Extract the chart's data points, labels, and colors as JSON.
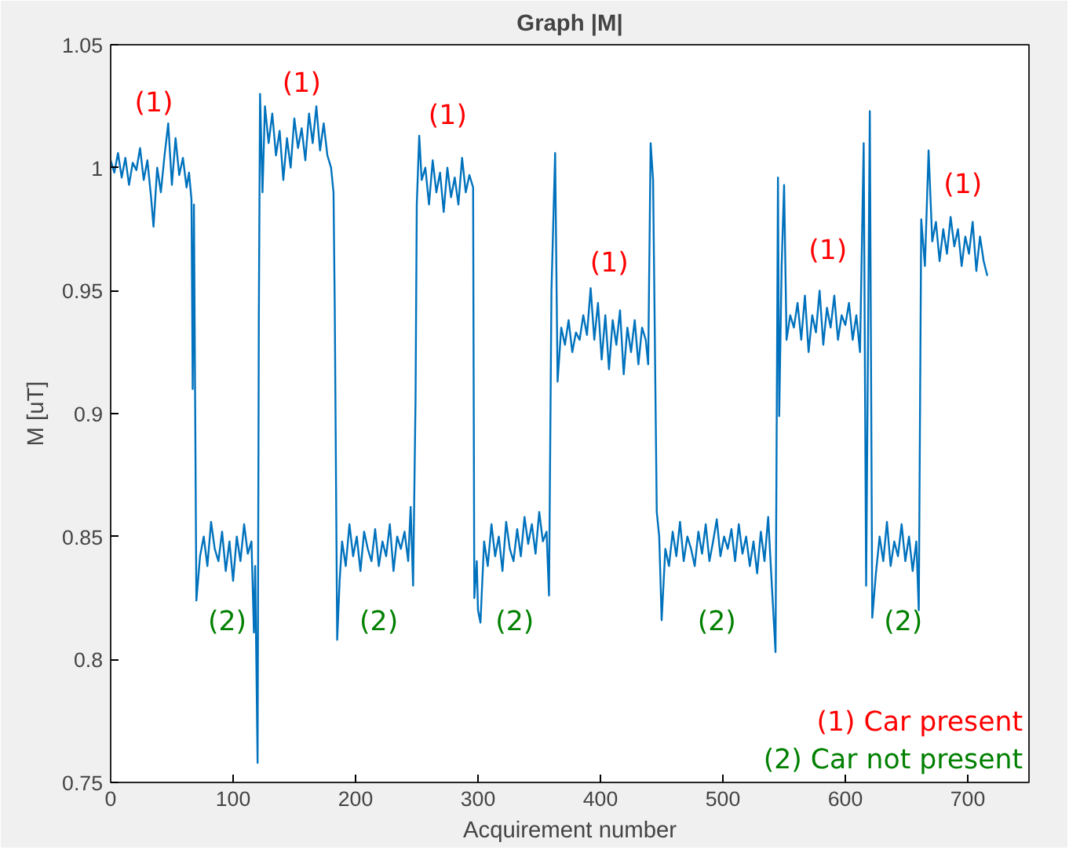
{
  "chart_data": {
    "type": "line",
    "title": "Graph |M|",
    "xlabel": "Acquirement number",
    "ylabel": "M [uT]",
    "xlim": [
      0,
      750
    ],
    "ylim": [
      0.75,
      1.05
    ],
    "xticks": [
      0,
      100,
      200,
      300,
      400,
      500,
      600,
      700
    ],
    "yticks": [
      0.75,
      0.8,
      0.85,
      0.9,
      0.95,
      1,
      1.05
    ],
    "grid": false,
    "series": [
      {
        "color": "#0072bd",
        "x": [
          0,
          3,
          6,
          9,
          12,
          15,
          18,
          21,
          24,
          27,
          30,
          33,
          35,
          38,
          41,
          44,
          47,
          50,
          53,
          56,
          59,
          62,
          64,
          66,
          67,
          68,
          70,
          73,
          76,
          79,
          82,
          85,
          88,
          91,
          94,
          97,
          100,
          103,
          106,
          109,
          112,
          115,
          117,
          118,
          120,
          121,
          122,
          124,
          126,
          129,
          132,
          135,
          138,
          141,
          144,
          147,
          150,
          153,
          156,
          159,
          162,
          165,
          168,
          171,
          174,
          177,
          180,
          182,
          183,
          185,
          187,
          189,
          192,
          195,
          198,
          201,
          204,
          207,
          210,
          213,
          216,
          219,
          222,
          225,
          228,
          231,
          234,
          237,
          240,
          243,
          245,
          247,
          249,
          250,
          252,
          254,
          257,
          260,
          263,
          266,
          269,
          272,
          275,
          278,
          281,
          284,
          287,
          290,
          293,
          296,
          297,
          299,
          300,
          302,
          305,
          308,
          311,
          314,
          317,
          320,
          323,
          326,
          329,
          332,
          335,
          338,
          341,
          344,
          347,
          350,
          353,
          356,
          358,
          360,
          363,
          365,
          368,
          371,
          374,
          377,
          380,
          383,
          386,
          389,
          392,
          395,
          398,
          401,
          404,
          407,
          410,
          413,
          416,
          419,
          422,
          425,
          428,
          431,
          434,
          437,
          439,
          441,
          443,
          446,
          448,
          450,
          453,
          456,
          459,
          462,
          465,
          468,
          471,
          474,
          477,
          480,
          483,
          486,
          489,
          492,
          495,
          498,
          501,
          504,
          507,
          510,
          513,
          516,
          519,
          522,
          525,
          528,
          531,
          534,
          537,
          540,
          543,
          545,
          546,
          548,
          550,
          552,
          555,
          558,
          561,
          564,
          567,
          570,
          573,
          576,
          579,
          582,
          585,
          588,
          591,
          594,
          597,
          600,
          603,
          606,
          609,
          612,
          615,
          617,
          620,
          622,
          625,
          628,
          631,
          634,
          637,
          640,
          643,
          646,
          649,
          652,
          655,
          658,
          660,
          662,
          665,
          668,
          671,
          674,
          677,
          680,
          683,
          686,
          689,
          692,
          695,
          698,
          701,
          704,
          707,
          710,
          713,
          716
        ],
        "values": [
          1.003,
          0.998,
          1.006,
          0.996,
          1.004,
          0.993,
          1.002,
          0.999,
          1.008,
          0.995,
          1.003,
          0.988,
          0.976,
          1.0,
          0.99,
          1.005,
          1.018,
          0.993,
          1.012,
          0.997,
          1.004,
          0.992,
          0.998,
          0.987,
          0.91,
          0.985,
          0.824,
          0.842,
          0.85,
          0.838,
          0.856,
          0.845,
          0.84,
          0.852,
          0.836,
          0.848,
          0.832,
          0.85,
          0.84,
          0.855,
          0.843,
          0.848,
          0.811,
          0.838,
          0.758,
          0.938,
          1.03,
          0.99,
          1.025,
          1.01,
          1.022,
          1.005,
          1.015,
          0.995,
          1.012,
          1.0,
          1.02,
          1.008,
          1.016,
          1.003,
          1.022,
          1.01,
          1.025,
          1.007,
          1.018,
          1.005,
          1.0,
          0.99,
          0.944,
          0.808,
          0.832,
          0.848,
          0.838,
          0.855,
          0.842,
          0.85,
          0.836,
          0.852,
          0.845,
          0.84,
          0.853,
          0.838,
          0.848,
          0.842,
          0.855,
          0.836,
          0.85,
          0.845,
          0.852,
          0.84,
          0.862,
          0.83,
          0.906,
          0.985,
          1.013,
          0.995,
          1.0,
          0.985,
          1.003,
          0.99,
          0.998,
          0.982,
          1.0,
          0.988,
          0.996,
          0.985,
          1.004,
          0.99,
          0.997,
          0.992,
          0.825,
          0.84,
          0.82,
          0.815,
          0.848,
          0.838,
          0.855,
          0.842,
          0.85,
          0.836,
          0.856,
          0.845,
          0.84,
          0.853,
          0.842,
          0.858,
          0.847,
          0.855,
          0.843,
          0.86,
          0.848,
          0.852,
          0.826,
          0.95,
          1.006,
          0.913,
          0.935,
          0.928,
          0.938,
          0.925,
          0.933,
          0.93,
          0.94,
          0.932,
          0.951,
          0.93,
          0.945,
          0.922,
          0.94,
          0.918,
          0.938,
          0.928,
          0.942,
          0.916,
          0.935,
          0.925,
          0.938,
          0.92,
          0.935,
          0.93,
          0.92,
          1.01,
          0.995,
          0.86,
          0.85,
          0.816,
          0.845,
          0.838,
          0.852,
          0.842,
          0.856,
          0.84,
          0.85,
          0.845,
          0.838,
          0.852,
          0.843,
          0.855,
          0.84,
          0.848,
          0.857,
          0.842,
          0.85,
          0.845,
          0.853,
          0.84,
          0.855,
          0.843,
          0.85,
          0.838,
          0.848,
          0.835,
          0.852,
          0.84,
          0.858,
          0.83,
          0.803,
          0.996,
          0.899,
          0.96,
          0.993,
          0.93,
          0.94,
          0.935,
          0.945,
          0.93,
          0.948,
          0.925,
          0.94,
          0.933,
          0.95,
          0.928,
          0.943,
          0.935,
          0.948,
          0.93,
          0.94,
          0.936,
          0.945,
          0.93,
          0.94,
          0.925,
          1.01,
          0.83,
          1.023,
          0.817,
          0.835,
          0.85,
          0.84,
          0.856,
          0.838,
          0.848,
          0.842,
          0.855,
          0.84,
          0.85,
          0.836,
          0.848,
          0.82,
          0.979,
          0.96,
          1.007,
          0.97,
          0.978,
          0.962,
          0.975,
          0.965,
          0.98,
          0.968,
          0.975,
          0.96,
          0.972,
          0.965,
          0.978,
          0.958,
          0.972,
          0.962,
          0.956
        ]
      }
    ],
    "annotations": [
      "(1)",
      "(1)",
      "(1)",
      "(1)",
      "(1)",
      "(1)",
      "(2)",
      "(2)",
      "(2)",
      "(2)",
      "(2)",
      "(1) Car present",
      "(2) Car not present"
    ]
  }
}
